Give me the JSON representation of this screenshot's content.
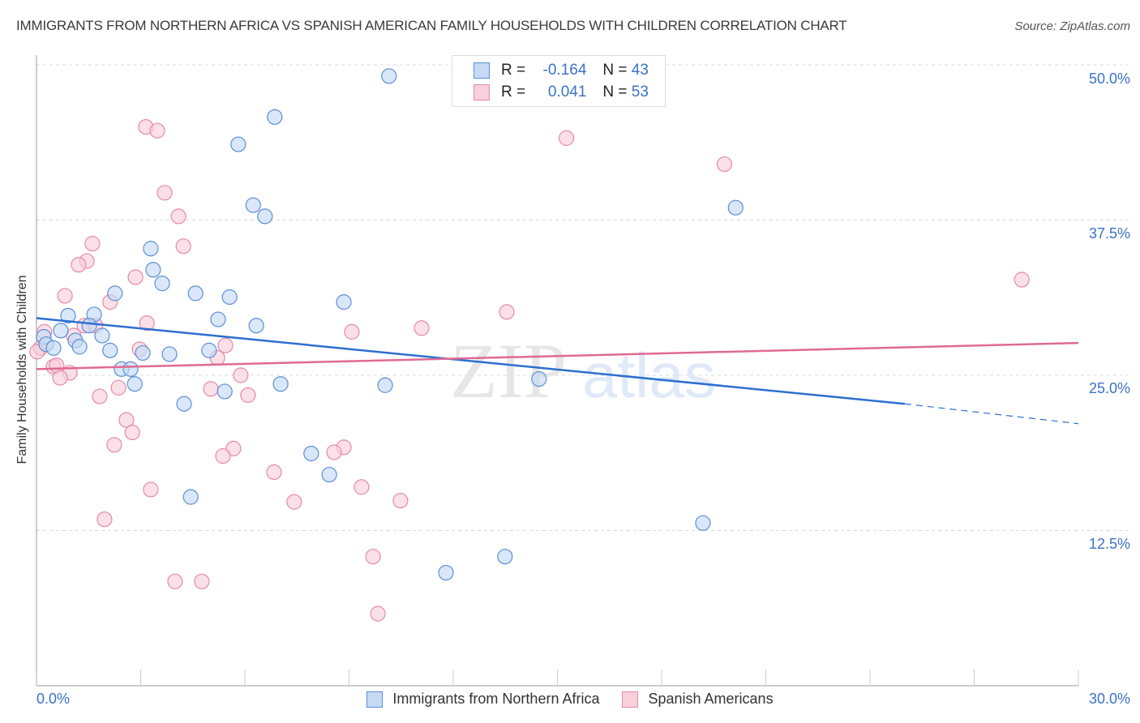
{
  "header": {
    "title": "IMMIGRANTS FROM NORTHERN AFRICA VS SPANISH AMERICAN FAMILY HOUSEHOLDS WITH CHILDREN CORRELATION CHART",
    "source": "Source: ZipAtlas.com"
  },
  "legend": {
    "rows": [
      {
        "r_label": "R =",
        "r_value": "-0.164",
        "n_label": "N =",
        "n_value": "43"
      },
      {
        "r_label": "R =",
        "r_value": "0.041",
        "n_label": "N =",
        "n_value": "53"
      }
    ]
  },
  "watermark": {
    "zip": "ZIP",
    "atlas": "atlas"
  },
  "colors": {
    "blue_fill": "#c5daf5",
    "blue_stroke": "#5b8fd8",
    "blue_line": "#2c6fd0",
    "pink_fill": "#f9cfdc",
    "pink_stroke": "#e58aa8",
    "pink_line": "#e06a92",
    "tick_label": "#3a72c8"
  },
  "chart_data": {
    "type": "scatter",
    "title": "IMMIGRANTS FROM NORTHERN AFRICA VS SPANISH AMERICAN FAMILY HOUSEHOLDS WITH CHILDREN CORRELATION CHART",
    "xlabel": "",
    "ylabel": "Family Households with Children",
    "xlim": [
      0,
      30
    ],
    "ylim": [
      0,
      52
    ],
    "x_tick_labels": [
      "0.0%",
      "30.0%"
    ],
    "y_ticks": [
      12.5,
      25.0,
      37.5,
      50.0
    ],
    "y_tick_labels": [
      "12.5%",
      "25.0%",
      "37.5%",
      "50.0%"
    ],
    "grid": "horizontal dashed",
    "legend_position": "bottom-center",
    "series": [
      {
        "name": "Immigrants from Northern Africa",
        "R": -0.164,
        "N": 43,
        "trend": {
          "x0": 0,
          "y0": 29.6,
          "x1": 25.0,
          "y1": 22.7,
          "dashed_to_x": 30,
          "dashed_to_y": 21.1
        },
        "points": [
          [
            10.15,
            49.1
          ],
          [
            6.86,
            45.8
          ],
          [
            5.81,
            43.6
          ],
          [
            20.13,
            38.5
          ],
          [
            6.24,
            38.7
          ],
          [
            6.58,
            37.8
          ],
          [
            3.29,
            35.2
          ],
          [
            3.36,
            33.5
          ],
          [
            3.62,
            32.4
          ],
          [
            2.26,
            31.6
          ],
          [
            4.58,
            31.6
          ],
          [
            5.56,
            31.3
          ],
          [
            8.85,
            30.9
          ],
          [
            0.91,
            29.8
          ],
          [
            1.66,
            29.9
          ],
          [
            5.23,
            29.5
          ],
          [
            6.33,
            29.0
          ],
          [
            1.52,
            29.0
          ],
          [
            0.7,
            28.6
          ],
          [
            0.21,
            28.1
          ],
          [
            1.89,
            28.2
          ],
          [
            1.12,
            27.8
          ],
          [
            0.28,
            27.5
          ],
          [
            0.49,
            27.2
          ],
          [
            1.24,
            27.3
          ],
          [
            2.12,
            27.0
          ],
          [
            3.06,
            26.8
          ],
          [
            3.83,
            26.7
          ],
          [
            4.97,
            27.0
          ],
          [
            2.45,
            25.5
          ],
          [
            2.71,
            25.5
          ],
          [
            2.83,
            24.3
          ],
          [
            7.03,
            24.3
          ],
          [
            10.04,
            24.2
          ],
          [
            14.47,
            24.7
          ],
          [
            5.42,
            23.7
          ],
          [
            4.25,
            22.7
          ],
          [
            7.91,
            18.7
          ],
          [
            8.43,
            17.0
          ],
          [
            4.44,
            15.2
          ],
          [
            19.19,
            13.1
          ],
          [
            13.49,
            10.4
          ],
          [
            11.79,
            9.1
          ]
        ]
      },
      {
        "name": "Spanish Americans",
        "R": 0.041,
        "N": 53,
        "trend": {
          "x0": 0,
          "y0": 25.5,
          "x1": 30,
          "y1": 27.6
        },
        "points": [
          [
            3.15,
            45.0
          ],
          [
            3.48,
            44.7
          ],
          [
            15.26,
            44.1
          ],
          [
            19.81,
            42.0
          ],
          [
            3.69,
            39.7
          ],
          [
            4.09,
            37.8
          ],
          [
            1.61,
            35.6
          ],
          [
            4.23,
            35.4
          ],
          [
            1.45,
            34.2
          ],
          [
            1.21,
            33.9
          ],
          [
            2.85,
            32.9
          ],
          [
            0.82,
            31.4
          ],
          [
            2.12,
            30.9
          ],
          [
            28.37,
            32.7
          ],
          [
            13.54,
            30.1
          ],
          [
            3.18,
            29.2
          ],
          [
            11.09,
            28.8
          ],
          [
            9.08,
            28.5
          ],
          [
            0.23,
            28.5
          ],
          [
            1.07,
            28.2
          ],
          [
            1.38,
            29.0
          ],
          [
            1.7,
            29.0
          ],
          [
            0.12,
            27.2
          ],
          [
            2.97,
            27.1
          ],
          [
            5.44,
            27.4
          ],
          [
            5.21,
            26.4
          ],
          [
            0.49,
            25.7
          ],
          [
            0.58,
            25.8
          ],
          [
            0.96,
            25.2
          ],
          [
            0.68,
            24.8
          ],
          [
            5.88,
            25.0
          ],
          [
            2.36,
            24.0
          ],
          [
            5.02,
            23.9
          ],
          [
            1.82,
            23.3
          ],
          [
            6.09,
            23.4
          ],
          [
            2.59,
            21.4
          ],
          [
            2.76,
            20.4
          ],
          [
            2.24,
            19.4
          ],
          [
            5.67,
            19.1
          ],
          [
            5.37,
            18.5
          ],
          [
            8.85,
            19.2
          ],
          [
            8.57,
            18.8
          ],
          [
            6.84,
            17.2
          ],
          [
            9.36,
            16.0
          ],
          [
            3.29,
            15.8
          ],
          [
            7.42,
            14.8
          ],
          [
            10.48,
            14.9
          ],
          [
            1.96,
            13.4
          ],
          [
            9.69,
            10.4
          ],
          [
            3.99,
            8.4
          ],
          [
            4.76,
            8.4
          ],
          [
            9.83,
            5.8
          ],
          [
            0.02,
            26.9
          ]
        ]
      }
    ]
  }
}
